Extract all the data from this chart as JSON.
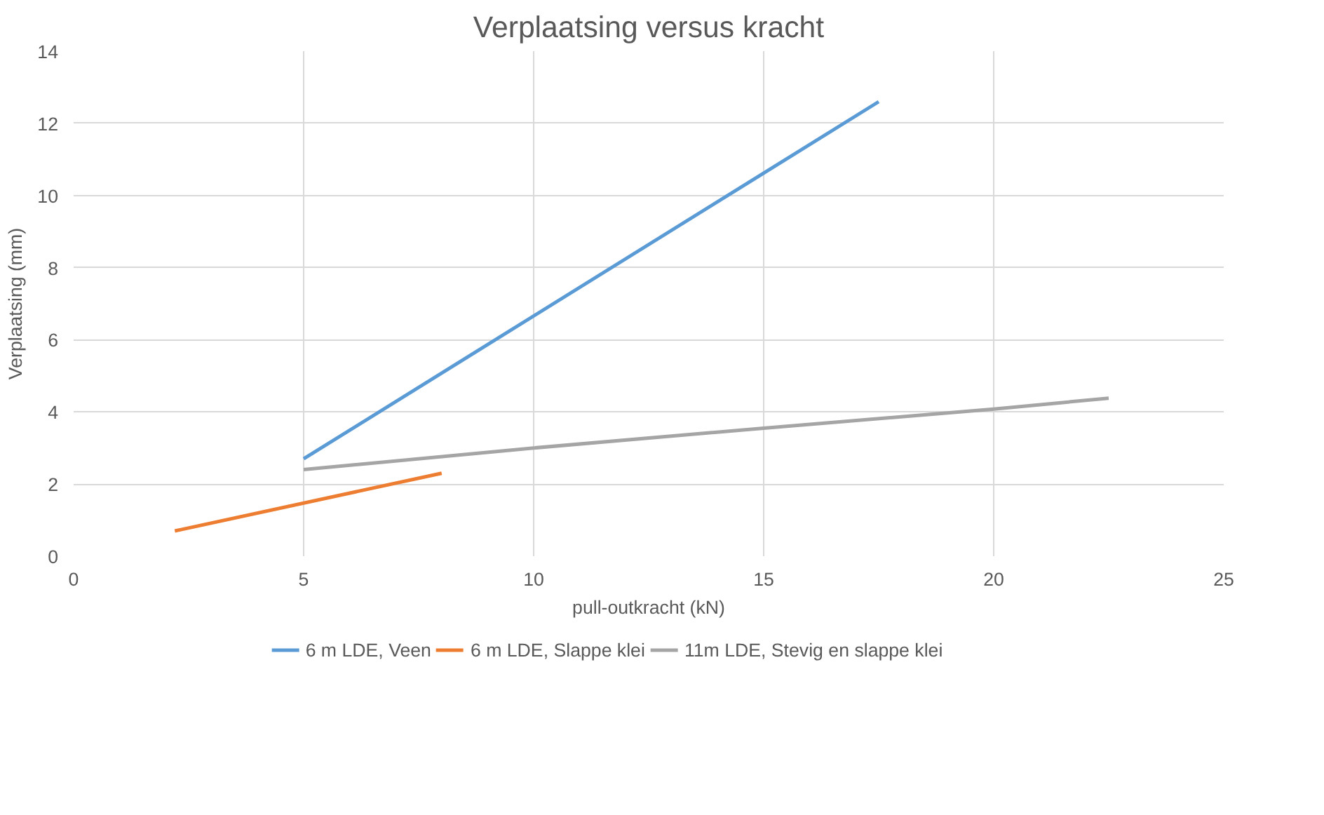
{
  "chart_data": {
    "type": "line",
    "title": "Verplaatsing versus kracht",
    "xlabel": "pull-outkracht (kN)",
    "ylabel": "Verplaatsing (mm)",
    "xlim": [
      0,
      25
    ],
    "xticks": [
      0,
      5,
      10,
      15,
      20,
      25
    ],
    "ylim": [
      0,
      14
    ],
    "yticks": [
      0,
      2,
      4,
      6,
      8,
      10,
      12,
      14
    ],
    "grid": true,
    "legend": "bottom",
    "marker": "none",
    "line_style": "solid",
    "series": [
      {
        "name": "6 m LDE, Veen",
        "color": "#5b9bd5",
        "x": [
          5,
          17.5
        ],
        "values": [
          2.7,
          12.6
        ]
      },
      {
        "name": "6 m LDE, Slappe klei",
        "color": "#ed7d31",
        "x": [
          2.2,
          8
        ],
        "values": [
          0.7,
          2.3
        ]
      },
      {
        "name": "11m LDE, Stevig en slappe klei",
        "color": "#a5a5a5",
        "x": [
          5,
          10,
          15,
          20,
          22.5
        ],
        "values": [
          2.4,
          3.0,
          3.55,
          4.08,
          4.38
        ]
      }
    ]
  }
}
